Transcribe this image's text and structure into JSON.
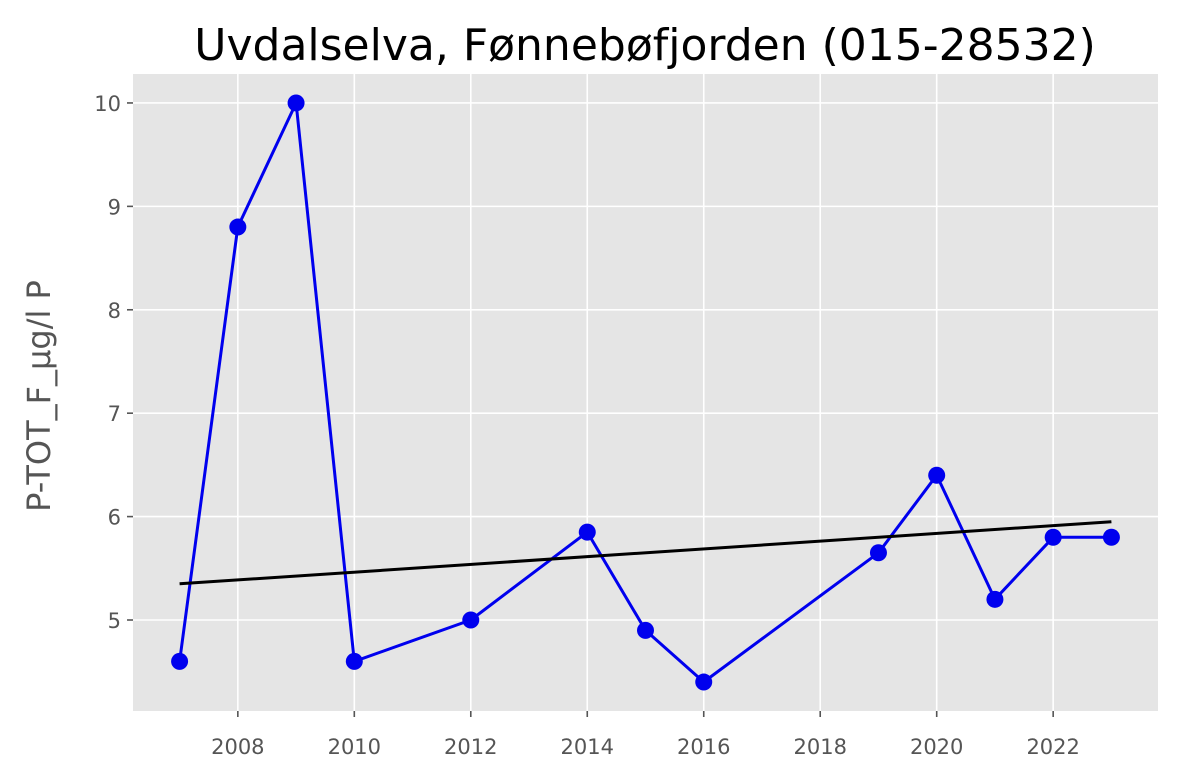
{
  "chart_data": {
    "type": "line",
    "title": "Uvdalselva, Fønnebøfjorden (015-28532)",
    "xlabel": "",
    "ylabel": "P-TOT_F_µg/l P",
    "xlim": [
      2006.2,
      2023.8
    ],
    "ylim": [
      4.12,
      10.28
    ],
    "x_ticks": [
      2008,
      2010,
      2012,
      2014,
      2016,
      2018,
      2020,
      2022
    ],
    "y_ticks": [
      5,
      6,
      7,
      8,
      9,
      10
    ],
    "grid": true,
    "legend": "none",
    "series": [
      {
        "color": "#0000ee",
        "x": [
          2007,
          2008,
          2009,
          2010,
          2012,
          2014,
          2015,
          2016,
          2019,
          2020,
          2021,
          2022,
          2023
        ],
        "y": [
          4.6,
          8.8,
          10.0,
          4.6,
          5.0,
          5.85,
          4.9,
          4.4,
          5.65,
          6.4,
          5.2,
          5.8,
          5.8
        ]
      }
    ],
    "trend_line": {
      "color": "#000000",
      "x": [
        2007,
        2023
      ],
      "y": [
        5.35,
        5.95
      ]
    },
    "background_color": "#e5e5e5",
    "grid_color": "#ffffff"
  }
}
